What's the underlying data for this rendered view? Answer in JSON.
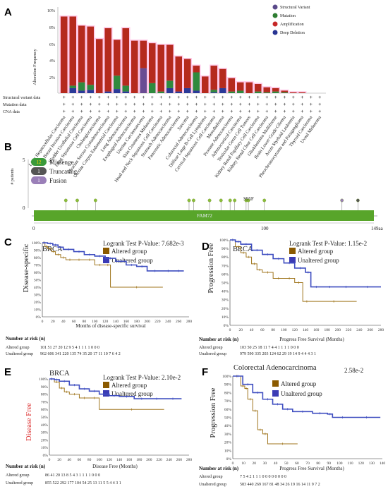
{
  "panels": {
    "A": "A",
    "B": "B",
    "C": "C",
    "D": "D",
    "E": "E",
    "F": "F"
  },
  "panel_a": {
    "ylabel": "Alteration Frequency",
    "yticks": [
      "10%",
      "8%",
      "6%",
      "4%",
      "2%"
    ],
    "legend": [
      {
        "label": "Structural Variant",
        "color": "#5a4a8a"
      },
      {
        "label": "Mutation",
        "color": "#2e7d32"
      },
      {
        "label": "Amplification",
        "color": "#c62828"
      },
      {
        "label": "Deep Deletion",
        "color": "#283593"
      }
    ],
    "row_labels": [
      "Structural variant data",
      "Mutation data",
      "CNA data"
    ],
    "colors": {
      "amp": "#b52a1e",
      "mut": "#2f8a3e",
      "del": "#2b3a98",
      "sv": "#6a4c93",
      "highlight": "#ff8fd0",
      "teal": "#40e0d0"
    }
  },
  "chart_data": [
    {
      "type": "bar",
      "title": "",
      "ylabel": "Alteration Frequency",
      "ylim": [
        0,
        10
      ],
      "categories": [
        "Liver Hepatocellular Carcinoma",
        "Breast Invasive Carcinoma",
        "Bladder Urothelial Carcinoma",
        "Lung Squamous Cell Carcinoma",
        "Cholangiocarcinoma",
        "Ovarian Serous Cystadenocarcinoma",
        "Uterine Corpus Endometrial Carcinoma",
        "Lung Adenocarcinoma",
        "Esophageal Adenocarcinoma",
        "Uterine Carcinosarcoma",
        "Skin Cutaneous Melanoma",
        "Head and Neck Squamous Cell Carcinoma",
        "Stomach Adenocarcinoma",
        "Pancreatic Adenocarcinoma",
        "Sarcoma",
        "Colorectal Adenocarcinoma",
        "Diffuse Large B-Cell Lymphoma",
        "Cervical Squamous Cell Carcinoma",
        "Mesothelioma",
        "Prostate Adenocarcinoma",
        "Adrenocortical Carcinoma",
        "Testicular Germ Cell Tumors",
        "Kidney Renal Papillary Cell Carcinoma",
        "Kidney Renal Clear Cell Carcinoma",
        "Glioblastoma Multiforme",
        "Brain Lower Grade Glioma",
        "Acute Myeloid Leukemia",
        "Pheochromocytoma and Paraganglioma",
        "Thyroid Carcinoma",
        "Uveal Melanoma"
      ],
      "series": [
        {
          "name": "Amplification",
          "values": [
            9.2,
            8.3,
            6.8,
            7.0,
            6.5,
            7.6,
            4.3,
            6.9,
            6.3,
            3.3,
            4.8,
            5.6,
            4.3,
            4.2,
            3.5,
            0.8,
            2.0,
            2.9,
            2.3,
            1.6,
            1.0,
            1.3,
            0.9,
            0.6,
            0.4,
            0.2,
            0.1,
            0.1,
            0.0,
            0.0
          ]
        },
        {
          "name": "Mutation",
          "values": [
            0.0,
            0.3,
            1.0,
            0.6,
            0.0,
            0.0,
            1.6,
            0.7,
            0.0,
            0.0,
            1.2,
            0.2,
            0.9,
            0.0,
            0.0,
            2.2,
            0.0,
            0.3,
            0.0,
            0.2,
            0.3,
            0.0,
            0.2,
            0.1,
            0.2,
            0.1,
            0.0,
            0.0,
            0.0,
            0.0
          ]
        },
        {
          "name": "Deep Deletion",
          "values": [
            0.0,
            0.6,
            0.3,
            0.4,
            0.0,
            0.2,
            0.5,
            0.2,
            0.0,
            0.0,
            0.0,
            0.0,
            0.6,
            0.2,
            0.6,
            0.3,
            0.0,
            0.1,
            0.6,
            0.0,
            0.0,
            0.0,
            0.0,
            0.0,
            0.0,
            0.0,
            0.0,
            0.0,
            0.0,
            0.0
          ]
        },
        {
          "name": "Structural Variant",
          "values": [
            0.0,
            0.0,
            0.0,
            0.0,
            0.0,
            0.0,
            0.0,
            0.0,
            0.0,
            3.0,
            0.0,
            0.0,
            0.0,
            0.0,
            0.0,
            0.0,
            0.0,
            0.0,
            0.0,
            0.0,
            0.0,
            0.0,
            0.0,
            0.0,
            0.0,
            0.0,
            0.0,
            0.0,
            0.0,
            0.0
          ]
        }
      ]
    },
    {
      "type": "scatter",
      "title": "",
      "xlabel": "",
      "ylabel": "# patients",
      "xlim": [
        0,
        149
      ],
      "ylim": [
        0,
        5
      ],
      "x": [
        14,
        19,
        27,
        68,
        70,
        77,
        82,
        86,
        88,
        93,
        94,
        101,
        135,
        142
      ],
      "y": [
        1,
        1,
        1,
        1,
        1,
        1,
        1,
        1,
        1,
        1,
        1,
        1,
        1,
        1
      ]
    },
    {
      "type": "line",
      "title": "BRCA",
      "xlabel": "Months of disease-specific survival",
      "ylabel": "Disease-specific",
      "xlim": [
        0,
        280
      ],
      "ylim": [
        0,
        100
      ],
      "series": [
        {
          "name": "Altered group",
          "x": [
            0,
            5,
            10,
            18,
            25,
            35,
            45,
            60,
            80,
            100,
            120,
            130,
            230
          ],
          "y": [
            100,
            95,
            92,
            88,
            84,
            80,
            77,
            77,
            77,
            70,
            70,
            40,
            40
          ]
        },
        {
          "name": "Unaltered group",
          "x": [
            0,
            10,
            20,
            30,
            40,
            60,
            80,
            100,
            120,
            140,
            160,
            180,
            200,
            230,
            250,
            270
          ],
          "y": [
            100,
            99,
            97,
            94,
            91,
            88,
            84,
            82,
            79,
            75,
            70,
            68,
            62,
            62,
            62,
            62
          ]
        }
      ]
    },
    {
      "type": "line",
      "title": "BRCA",
      "xlabel": "Progress Free Survival (Months)",
      "ylabel": "Progression Free",
      "xlim": [
        0,
        280
      ],
      "ylim": [
        0,
        100
      ],
      "series": [
        {
          "name": "Altered group",
          "x": [
            0,
            10,
            20,
            30,
            40,
            50,
            60,
            80,
            100,
            120,
            135,
            150,
            235
          ],
          "y": [
            100,
            92,
            85,
            80,
            72,
            65,
            62,
            55,
            55,
            50,
            28,
            28,
            28
          ]
        },
        {
          "name": "Unaltered group",
          "x": [
            0,
            10,
            20,
            40,
            60,
            80,
            100,
            120,
            140,
            150,
            170,
            200,
            230,
            280
          ],
          "y": [
            100,
            98,
            95,
            88,
            83,
            78,
            73,
            67,
            62,
            45,
            45,
            45,
            45,
            45
          ]
        }
      ]
    },
    {
      "type": "line",
      "title": "BRCA",
      "xlabel": "Disease Free (Months)",
      "ylabel": "Disease Free",
      "xlim": [
        0,
        280
      ],
      "ylim": [
        0,
        100
      ],
      "series": [
        {
          "name": "Altered group",
          "x": [
            0,
            10,
            20,
            30,
            40,
            60,
            80,
            100,
            230
          ],
          "y": [
            100,
            96,
            88,
            83,
            80,
            75,
            75,
            60,
            60
          ]
        },
        {
          "name": "Unaltered group",
          "x": [
            0,
            10,
            20,
            40,
            60,
            80,
            100,
            120,
            140,
            170,
            200,
            230,
            265
          ],
          "y": [
            100,
            99,
            97,
            92,
            87,
            84,
            80,
            78,
            77,
            74,
            74,
            74,
            74
          ]
        }
      ]
    },
    {
      "type": "line",
      "title": "Colorectal Adenocarcinoma",
      "xlabel": "Progress Free Survival (Months)",
      "ylabel": "Progression Free",
      "xlim": [
        0,
        150
      ],
      "ylim": [
        0,
        100
      ],
      "series": [
        {
          "name": "Altered group",
          "x": [
            0,
            8,
            12,
            15,
            20,
            25,
            30,
            35,
            65
          ],
          "y": [
            100,
            88,
            85,
            72,
            58,
            35,
            30,
            18,
            18
          ]
        },
        {
          "name": "Unaltered group",
          "x": [
            0,
            10,
            20,
            30,
            40,
            50,
            60,
            80,
            95,
            100,
            120,
            148
          ],
          "y": [
            100,
            90,
            80,
            72,
            66,
            60,
            57,
            55,
            54,
            50,
            50,
            50
          ]
        }
      ]
    }
  ],
  "panel_b": {
    "legend": [
      {
        "count": "12",
        "label": "Missenge",
        "color": "#3a9a3a"
      },
      {
        "count": "1",
        "label": "Truncating",
        "color": "#555555"
      },
      {
        "count": "1",
        "label": "Fusion",
        "color": "#9a7fb8"
      }
    ],
    "ylabel": "# patients",
    "yticks": [
      "5",
      "0"
    ],
    "mutation_label": "S95F",
    "domain_label": "FAM72",
    "xticks": [
      "0",
      "100",
      "149aa"
    ]
  },
  "panel_c": {
    "title": "BRCA",
    "pvalue": "Logrank Test P-Value: 7.682e-3",
    "legend": [
      "Altered group",
      "Unaltered group"
    ],
    "ylabel": "Disease-specific",
    "yticks": [
      "100%",
      "90%",
      "80%",
      "70%",
      "60%",
      "50%",
      "40%",
      "30%",
      "20%",
      "10%",
      "0%"
    ],
    "xticks": [
      "0",
      "20",
      "40",
      "60",
      "80",
      "100",
      "120",
      "140",
      "160",
      "180",
      "200",
      "220",
      "240",
      "260",
      "280"
    ],
    "xlabel": "Months of disease-specific survival",
    "risk_title": "Number at risk (n)",
    "risk_rows": [
      {
        "label": "Altered group",
        "values": "101  51  27  20  12  9  5  4  1  1  1  1  0  0  0"
      },
      {
        "label": "Unaltered group",
        "values": "962  606  341  220  135  74  35  20  17  11  10  7  6  4  2"
      }
    ]
  },
  "panel_d": {
    "title": "BRCA",
    "pvalue": "Logrank Test P-Value: 1.15e-2",
    "legend": [
      "Altered group",
      "Unaltered group"
    ],
    "ylabel": "Progression Free",
    "yticks": [
      "100%",
      "90%",
      "80%",
      "70%",
      "60%",
      "50%",
      "40%",
      "30%",
      "20%",
      "10%",
      "0%"
    ],
    "xticks": [
      "0",
      "20",
      "40",
      "60",
      "80",
      "100",
      "120",
      "140",
      "160",
      "180",
      "200",
      "220",
      "240",
      "260",
      "280"
    ],
    "xlabel": "Progress Free Survival (Months)",
    "risk_title": "Number at risk (n)",
    "risk_rows": [
      {
        "label": "Altered group",
        "values": "103  50  25  18  11  7  4  4  1  1  1  1  0  0  0"
      },
      {
        "label": "Unaltered group",
        "values": "979  590  335  203  124  62  29  19  14  9  4  4  4  3  1"
      }
    ]
  },
  "panel_e": {
    "title": "BRCA",
    "pvalue": "Logrank Test P-Value: 2.10e-2",
    "legend": [
      "Altered group",
      "Unaltered group"
    ],
    "ylabel": "Disease Free",
    "yticks": [
      "100%",
      "90%",
      "80%",
      "70%",
      "60%",
      "50%",
      "40%",
      "30%",
      "20%",
      "10%",
      "0%"
    ],
    "xticks": [
      "0",
      "20",
      "40",
      "60",
      "80",
      "100",
      "120",
      "140",
      "160",
      "180",
      "200",
      "220",
      "240",
      "260",
      "280"
    ],
    "xlabel": "Disease Free (Months)",
    "risk_title": "Number at risk (n)",
    "risk_rows": [
      {
        "label": "Altered group",
        "values": "86  41  20  13  8  5  4  3  1  1  1  1  0  0  0"
      },
      {
        "label": "Unaltered group",
        "values": "855  522  292  177  104  54  25  13  11  5  5  4  4  3  1"
      }
    ]
  },
  "panel_f": {
    "title": "Colorectal Adenocarcinoma",
    "pvalue": "2.58e-2",
    "legend": [
      "Altered group",
      "Unaltered group"
    ],
    "ylabel": "Progression Free",
    "yticks": [
      "100%",
      "90%",
      "80%",
      "70%",
      "60%",
      "50%",
      "40%",
      "30%",
      "20%",
      "10%",
      "0%"
    ],
    "xticks": [
      "0",
      "10",
      "20",
      "30",
      "40",
      "50",
      "60",
      "70",
      "80",
      "90",
      "100",
      "110",
      "120",
      "130",
      "140"
    ],
    "xlabel": "Progress Free Survival (Months)",
    "risk_title": "Number at risk (n)",
    "risk_rows": [
      {
        "label": "Altered group",
        "values": "7  5  4  2  1  1  1  0  0  0  0  0  0  0  0"
      },
      {
        "label": "Unaltered group",
        "values": "583  440  269  167  81  48  34  26  19  16  14  11  9  7  2"
      }
    ]
  },
  "km_colors": {
    "altered": "#a0761e",
    "unaltered": "#3f4ec0",
    "altered_fill": "#8b5a00",
    "unaltered_fill": "#3b3bb5",
    "pink": "#ff6ec7",
    "teal": "#3be3d3"
  }
}
